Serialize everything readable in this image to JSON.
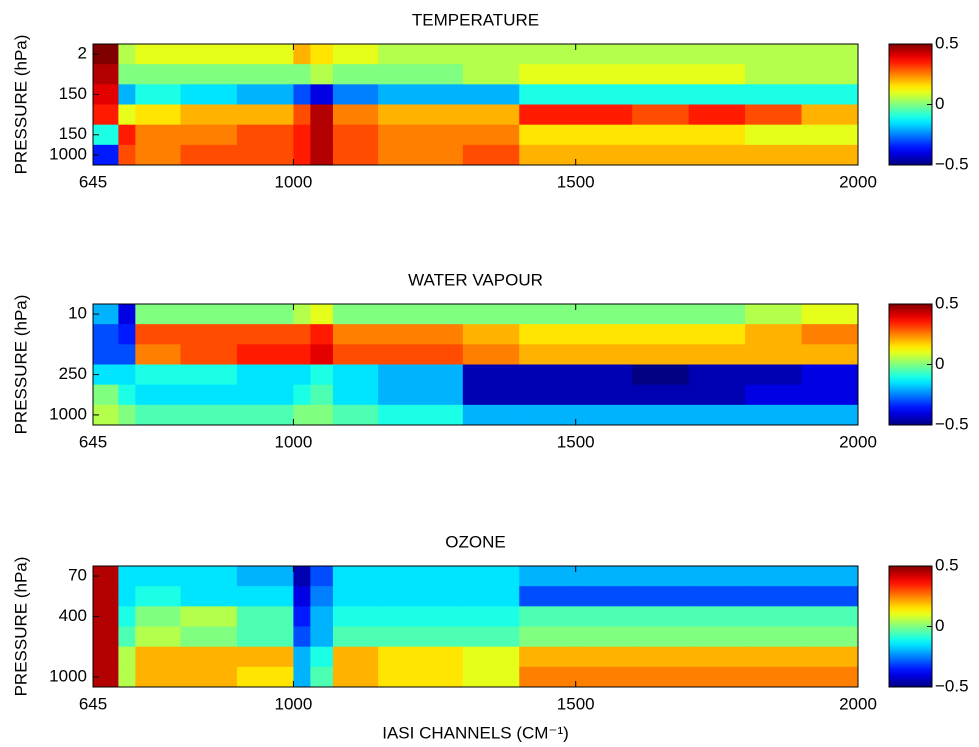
{
  "chart_data": [
    {
      "type": "heatmap",
      "title": "TEMPERATURE",
      "ylabel": "PRESSURE (hPa)",
      "colormap": "jet",
      "x_edges": [
        645,
        690,
        720,
        800,
        900,
        1000,
        1030,
        1070,
        1150,
        1300,
        1400,
        1500,
        1600,
        1700,
        1800,
        1900,
        2000
      ],
      "xlim": [
        645,
        2000
      ],
      "xticks": [
        645,
        1000,
        1500,
        2000
      ],
      "y_categories": [
        "2",
        null,
        "150",
        null,
        "150",
        "1000"
      ],
      "values": [
        [
          0.5,
          0.05,
          0.1,
          0.1,
          0.1,
          0.2,
          0.15,
          0.1,
          0.05,
          0.05,
          0.05,
          0.05,
          0.05,
          0.05,
          0.05,
          0.05
        ],
        [
          0.45,
          0,
          0,
          0,
          0,
          0,
          0.05,
          0,
          0,
          0.05,
          0.1,
          0.1,
          0.1,
          0.1,
          0.05,
          0.05
        ],
        [
          0.4,
          -0.2,
          -0.1,
          -0.15,
          -0.2,
          -0.3,
          -0.4,
          -0.25,
          -0.2,
          -0.2,
          -0.1,
          -0.1,
          -0.1,
          -0.1,
          -0.1,
          -0.1
        ],
        [
          0.35,
          0.1,
          0.15,
          0.2,
          0.2,
          0.3,
          0.45,
          0.25,
          0.2,
          0.2,
          0.35,
          0.35,
          0.3,
          0.35,
          0.3,
          0.2
        ],
        [
          -0.1,
          0.35,
          0.25,
          0.25,
          0.3,
          0.35,
          0.45,
          0.3,
          0.25,
          0.25,
          0.15,
          0.15,
          0.15,
          0.15,
          0.1,
          0.1
        ],
        [
          -0.35,
          0.3,
          0.25,
          0.3,
          0.3,
          0.35,
          0.45,
          0.3,
          0.25,
          0.3,
          0.2,
          0.2,
          0.2,
          0.2,
          0.2,
          0.2
        ]
      ],
      "clim": [
        -0.5,
        0.5
      ],
      "cticks": [
        0.5,
        0,
        {
          "value": -0.5,
          "label": "−0.5"
        }
      ]
    },
    {
      "type": "heatmap",
      "title": "WATER VAPOUR",
      "ylabel": "PRESSURE (hPa)",
      "colormap": "jet",
      "x_edges": [
        645,
        690,
        720,
        800,
        900,
        1000,
        1030,
        1070,
        1150,
        1300,
        1400,
        1500,
        1600,
        1700,
        1800,
        1900,
        2000
      ],
      "xlim": [
        645,
        2000
      ],
      "xticks": [
        645,
        1000,
        1500,
        2000
      ],
      "y_categories": [
        "10",
        null,
        null,
        "250",
        null,
        "1000"
      ],
      "values": [
        [
          -0.2,
          -0.4,
          0,
          0,
          0,
          0.05,
          0.1,
          0,
          0,
          0,
          0,
          0,
          0,
          0,
          0.05,
          0.1
        ],
        [
          -0.3,
          -0.35,
          0.3,
          0.3,
          0.3,
          0.3,
          0.35,
          0.25,
          0.25,
          0.2,
          0.15,
          0.15,
          0.15,
          0.15,
          0.2,
          0.25
        ],
        [
          -0.3,
          -0.3,
          0.25,
          0.3,
          0.35,
          0.35,
          0.4,
          0.3,
          0.3,
          0.25,
          0.2,
          0.2,
          0.2,
          0.2,
          0.2,
          0.2
        ],
        [
          -0.15,
          -0.15,
          -0.1,
          -0.1,
          -0.15,
          -0.15,
          -0.1,
          -0.15,
          -0.2,
          -0.45,
          -0.45,
          -0.45,
          -0.5,
          -0.45,
          -0.45,
          -0.4
        ],
        [
          0,
          -0.1,
          -0.15,
          -0.15,
          -0.15,
          -0.1,
          -0.05,
          -0.15,
          -0.2,
          -0.45,
          -0.45,
          -0.45,
          -0.45,
          -0.45,
          -0.4,
          -0.4
        ],
        [
          0.05,
          0,
          -0.05,
          -0.05,
          -0.05,
          0,
          0,
          -0.05,
          -0.1,
          -0.2,
          -0.2,
          -0.2,
          -0.2,
          -0.2,
          -0.2,
          -0.2
        ]
      ],
      "clim": [
        -0.5,
        0.5
      ],
      "cticks": [
        0.5,
        0,
        {
          "value": -0.5,
          "label": "−0.5"
        }
      ]
    },
    {
      "type": "heatmap",
      "title": "OZONE",
      "ylabel": "PRESSURE (hPa)",
      "xlabel": "IASI CHANNELS (CM⁻¹)",
      "colormap": "jet",
      "x_edges": [
        645,
        690,
        720,
        800,
        900,
        1000,
        1030,
        1070,
        1150,
        1300,
        1400,
        1500,
        1600,
        1700,
        1800,
        1900,
        2000
      ],
      "xlim": [
        645,
        2000
      ],
      "xticks": [
        645,
        1000,
        1500,
        2000
      ],
      "y_categories": [
        "70",
        null,
        "400",
        null,
        null,
        "1000"
      ],
      "values": [
        [
          0.45,
          -0.15,
          -0.15,
          -0.15,
          -0.2,
          -0.45,
          -0.3,
          -0.15,
          -0.15,
          -0.15,
          -0.2,
          -0.2,
          -0.2,
          -0.2,
          -0.2,
          -0.2
        ],
        [
          0.45,
          -0.15,
          -0.1,
          -0.15,
          -0.15,
          -0.4,
          -0.25,
          -0.15,
          -0.15,
          -0.15,
          -0.3,
          -0.3,
          -0.3,
          -0.3,
          -0.3,
          -0.3
        ],
        [
          0.45,
          -0.1,
          0,
          0.05,
          -0.05,
          -0.35,
          -0.2,
          -0.1,
          -0.1,
          -0.1,
          -0.05,
          -0.05,
          -0.05,
          -0.05,
          -0.05,
          -0.05
        ],
        [
          0.45,
          -0.05,
          0.05,
          0,
          -0.05,
          -0.3,
          -0.2,
          -0.05,
          -0.05,
          -0.05,
          0,
          0,
          0,
          0,
          0,
          0
        ],
        [
          0.45,
          0.05,
          0.2,
          0.2,
          0.2,
          -0.2,
          -0.1,
          0.2,
          0.15,
          0.1,
          0.2,
          0.2,
          0.2,
          0.2,
          0.2,
          0.2
        ],
        [
          0.45,
          0.05,
          0.2,
          0.2,
          0.15,
          -0.2,
          -0.05,
          0.2,
          0.15,
          0.1,
          0.25,
          0.25,
          0.25,
          0.25,
          0.25,
          0.25
        ]
      ],
      "clim": [
        -0.5,
        0.5
      ],
      "cticks": [
        0.5,
        0,
        {
          "value": -0.5,
          "label": "−0.5"
        }
      ]
    }
  ]
}
